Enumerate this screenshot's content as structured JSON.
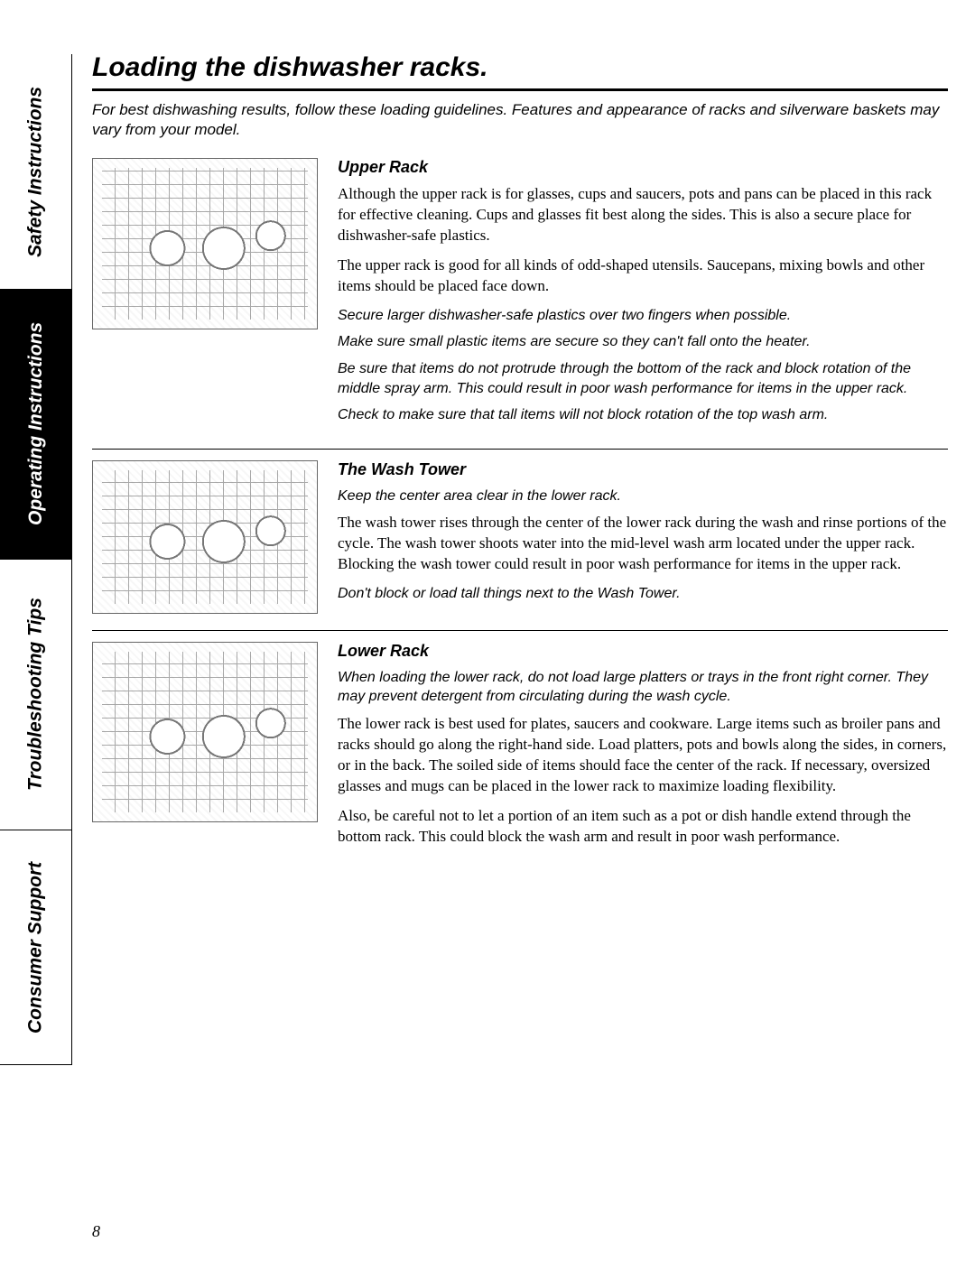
{
  "sidebar": {
    "tabs": [
      {
        "label": "Safety Instructions",
        "active": false
      },
      {
        "label": "Operating Instructions",
        "active": true
      },
      {
        "label": "Troubleshooting Tips",
        "active": false
      },
      {
        "label": "Consumer Support",
        "active": false
      }
    ]
  },
  "title": "Loading the dishwasher racks.",
  "intro": "For best dishwashing results, follow these loading guidelines. Features and appearance of racks and silverware baskets may vary from your model.",
  "sections": [
    {
      "heading": "Upper Rack",
      "paragraphs": [
        {
          "style": "body",
          "text": "Although the upper rack is for glasses, cups and saucers, pots and pans can be placed in this rack for effective cleaning. Cups and glasses fit best along the sides. This is also a secure place for dishwasher-safe plastics."
        },
        {
          "style": "body",
          "text": "The upper rack is good for all kinds of odd-shaped utensils. Saucepans, mixing bowls and other items should be placed face down."
        },
        {
          "style": "note",
          "text": "Secure larger dishwasher-safe plastics over two fingers when possible."
        },
        {
          "style": "note",
          "text": "Make sure small plastic items are secure so they can't fall onto the heater."
        },
        {
          "style": "note",
          "text": "Be sure that items do not protrude through the bottom of the rack and block rotation of the middle spray arm. This could result in poor wash performance for items in the upper rack."
        },
        {
          "style": "note",
          "text": "Check to make sure that tall items will not block rotation of the top wash arm."
        }
      ]
    },
    {
      "heading": "The Wash Tower",
      "paragraphs": [
        {
          "style": "note",
          "text": "Keep the center area clear in the lower rack."
        },
        {
          "style": "body",
          "text": "The wash tower rises through the center of the lower rack during the wash and rinse portions of the cycle. The wash tower shoots water into the mid-level wash arm located under the upper rack. Blocking the wash tower could result in poor wash performance for items in the upper rack."
        },
        {
          "style": "note",
          "text": "Don't block or load tall things next to the Wash Tower."
        }
      ]
    },
    {
      "heading": "Lower Rack",
      "paragraphs": [
        {
          "style": "note",
          "text": "When loading the lower rack, do not load large platters or trays in the front right corner. They may prevent detergent from circulating during the wash cycle."
        },
        {
          "style": "body",
          "text": "The lower rack is best used for plates, saucers and cookware. Large items such as broiler pans and racks should go along the right-hand side. Load platters, pots and bowls along the sides, in corners, or in the back. The soiled side of items should face the center of the rack. If necessary, oversized glasses and mugs can be placed in the lower rack to maximize loading flexibility."
        },
        {
          "style": "body",
          "text": "Also, be careful not to let a portion of an item such as a pot or dish handle extend through the bottom rack. This could block the wash arm and result in poor wash performance."
        }
      ]
    }
  ],
  "page_number": "8",
  "colors": {
    "background": "#ffffff",
    "text": "#000000",
    "active_tab_bg": "#000000",
    "active_tab_text": "#ffffff",
    "rule": "#000000"
  },
  "typography": {
    "title_fontsize": 30,
    "subheading_fontsize": 18,
    "body_fontsize": 17,
    "note_fontsize": 16,
    "tab_fontsize": 21,
    "title_family": "Arial",
    "body_family": "Georgia"
  }
}
